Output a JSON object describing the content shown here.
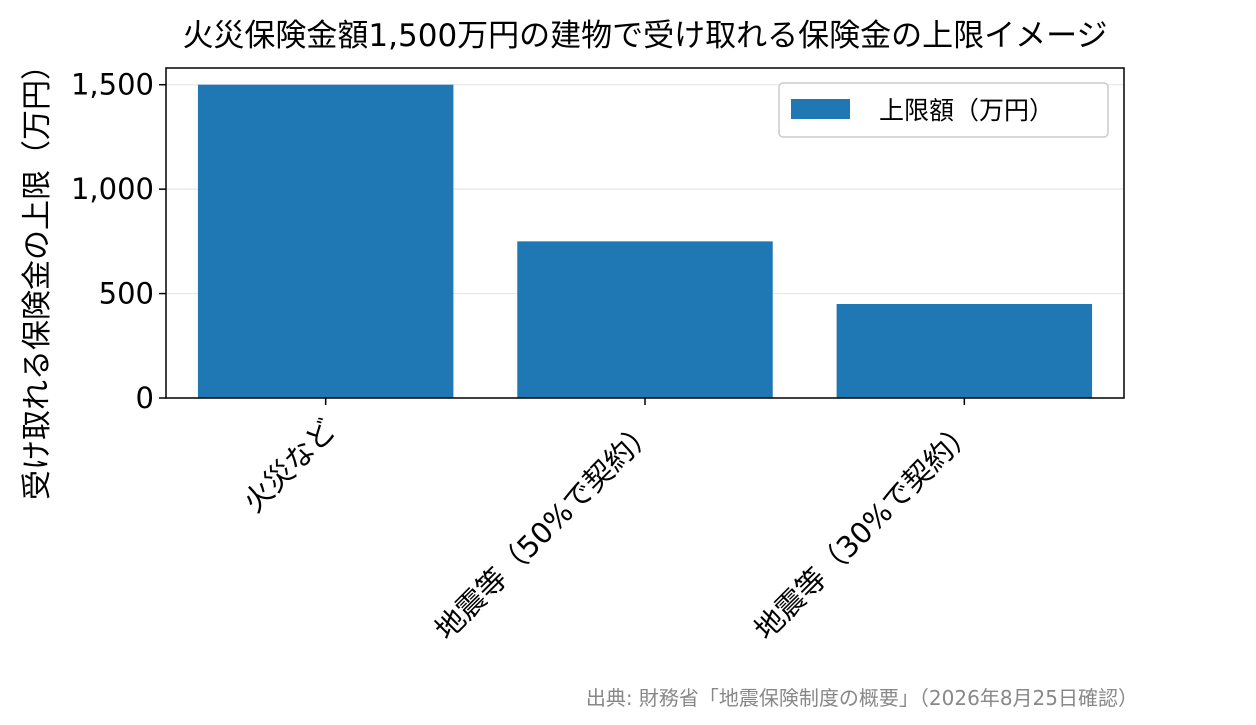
{
  "chart_data": {
    "type": "bar",
    "title": "火災保険金額1,500万円の建物で受け取れる保険金の上限イメージ",
    "xlabel": "",
    "ylabel": "受け取れる保険金の上限（万円）",
    "categories": [
      "火災など",
      "地震等（50%で契約）",
      "地震等（30%で契約）"
    ],
    "series": [
      {
        "name": "上限額（万円）",
        "values": [
          1500,
          750,
          450
        ],
        "color": "#1f77b4"
      }
    ],
    "ylim": [
      0,
      1580
    ],
    "yticks": [
      0,
      500,
      1000,
      1500
    ],
    "ytick_labels": [
      "0",
      "500",
      "1,000",
      "1,500"
    ],
    "grid": "y",
    "legend": "top-right",
    "source": "出典: 財務省「地震保険制度の概要」（2026年8月25日確認）"
  }
}
